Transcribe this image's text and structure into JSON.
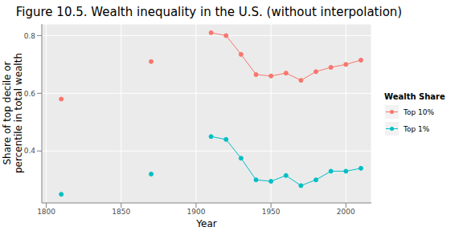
{
  "chart_data": {
    "type": "line",
    "title": "Figure 10.5. Wealth inequality in the U.S.  (without interpolation)",
    "x_label": "Year",
    "y_label": "Share of top decile or percentile in total wealth",
    "legend_title": "Wealth Share",
    "legend": "right",
    "grid": true,
    "x": [
      1810,
      1820,
      1830,
      1840,
      1850,
      1860,
      1870,
      1880,
      1890,
      1900,
      1910,
      1920,
      1930,
      1940,
      1950,
      1960,
      1970,
      1980,
      1990,
      2000,
      2010
    ],
    "series": [
      {
        "name": "Top 10%",
        "color": "#F8766D",
        "marker": "circle",
        "values": [
          0.58,
          null,
          null,
          null,
          null,
          null,
          0.71,
          null,
          null,
          null,
          0.81,
          0.8,
          0.735,
          0.665,
          0.66,
          0.67,
          0.645,
          0.675,
          0.69,
          0.7,
          0.715
        ]
      },
      {
        "name": "Top 1%",
        "color": "#00BFC4",
        "marker": "circle",
        "values": [
          0.25,
          null,
          null,
          null,
          null,
          null,
          0.32,
          null,
          null,
          null,
          0.45,
          0.44,
          0.375,
          0.3,
          0.295,
          0.315,
          0.28,
          0.3,
          0.33,
          0.33,
          0.34
        ]
      }
    ],
    "xlim": [
      1797,
      2017
    ],
    "ylim": [
      0.22,
      0.84
    ],
    "xticks": [
      1800,
      1850,
      1900,
      1950,
      2000
    ],
    "yticks": [
      0.4,
      0.6,
      0.8
    ]
  }
}
